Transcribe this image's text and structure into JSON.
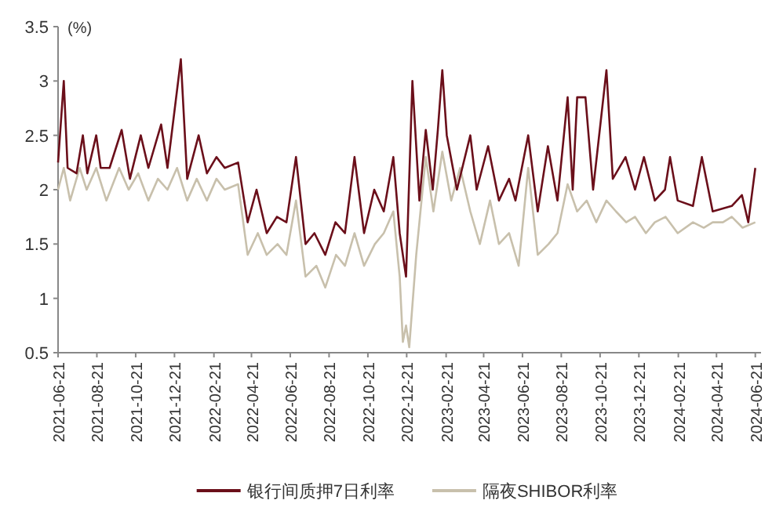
{
  "chart_data": {
    "type": "line",
    "ylabel": "(%)",
    "xlim": [
      "2021-06-21",
      "2024-06-30"
    ],
    "ylim": [
      0.5,
      3.5
    ],
    "yticks": [
      0.5,
      1,
      1.5,
      2,
      2.5,
      3,
      3.5
    ],
    "xticks": [
      "2021-06-21",
      "2021-08-21",
      "2021-10-21",
      "2021-12-21",
      "2022-02-21",
      "2022-04-21",
      "2022-06-21",
      "2022-08-21",
      "2022-10-21",
      "2022-12-21",
      "2023-02-21",
      "2023-04-21",
      "2023-06-21",
      "2023-08-21",
      "2023-10-21",
      "2023-12-21",
      "2024-02-21",
      "2024-04-21",
      "2024-06-21"
    ],
    "legend": "bottom",
    "grid": false,
    "marker": "none",
    "line_style": "solid",
    "series": [
      {
        "name": "银行间质押7日利率",
        "color": "#6b0f1a",
        "x": [
          "2021-06-21",
          "2021-06-30",
          "2021-07-06",
          "2021-07-20",
          "2021-07-30",
          "2021-08-06",
          "2021-08-20",
          "2021-08-27",
          "2021-09-10",
          "2021-09-29",
          "2021-10-12",
          "2021-10-29",
          "2021-11-10",
          "2021-11-30",
          "2021-12-10",
          "2021-12-31",
          "2022-01-10",
          "2022-01-28",
          "2022-02-10",
          "2022-02-25",
          "2022-03-10",
          "2022-03-31",
          "2022-04-15",
          "2022-04-29",
          "2022-05-15",
          "2022-05-31",
          "2022-06-15",
          "2022-06-30",
          "2022-07-15",
          "2022-07-29",
          "2022-08-15",
          "2022-08-31",
          "2022-09-15",
          "2022-09-30",
          "2022-10-15",
          "2022-10-31",
          "2022-11-15",
          "2022-11-30",
          "2022-12-10",
          "2022-12-20",
          "2022-12-30",
          "2023-01-10",
          "2023-01-20",
          "2023-01-31",
          "2023-02-08",
          "2023-02-15",
          "2023-02-22",
          "2023-03-10",
          "2023-03-31",
          "2023-04-10",
          "2023-04-28",
          "2023-05-15",
          "2023-05-31",
          "2023-06-10",
          "2023-06-30",
          "2023-07-15",
          "2023-07-31",
          "2023-08-15",
          "2023-08-31",
          "2023-09-08",
          "2023-09-15",
          "2023-09-28",
          "2023-10-10",
          "2023-10-31",
          "2023-11-10",
          "2023-11-30",
          "2023-12-15",
          "2023-12-29",
          "2024-01-15",
          "2024-01-31",
          "2024-02-08",
          "2024-02-20",
          "2024-03-15",
          "2024-03-29",
          "2024-04-15",
          "2024-05-15",
          "2024-05-31",
          "2024-06-10",
          "2024-06-21"
        ],
        "values": [
          2.25,
          3.0,
          2.2,
          2.15,
          2.5,
          2.15,
          2.5,
          2.2,
          2.2,
          2.55,
          2.1,
          2.5,
          2.2,
          2.6,
          2.2,
          3.2,
          2.1,
          2.5,
          2.15,
          2.3,
          2.2,
          2.25,
          1.7,
          2.0,
          1.6,
          1.75,
          1.7,
          2.3,
          1.5,
          1.6,
          1.4,
          1.7,
          1.6,
          2.3,
          1.6,
          2.0,
          1.8,
          2.3,
          1.6,
          1.2,
          3.0,
          1.9,
          2.55,
          2.0,
          2.55,
          3.1,
          2.5,
          2.0,
          2.5,
          2.0,
          2.4,
          1.9,
          2.1,
          1.9,
          2.5,
          1.8,
          2.4,
          1.9,
          2.85,
          2.0,
          2.85,
          2.85,
          2.0,
          3.1,
          2.1,
          2.3,
          2.0,
          2.3,
          1.9,
          2.0,
          2.3,
          1.9,
          1.85,
          2.3,
          1.8,
          1.85,
          1.95,
          1.7,
          2.2
        ]
      },
      {
        "name": "隔夜SHIBOR利率",
        "color": "#c8c0ac",
        "x": [
          "2021-06-21",
          "2021-06-30",
          "2021-07-10",
          "2021-07-25",
          "2021-08-05",
          "2021-08-20",
          "2021-09-05",
          "2021-09-25",
          "2021-10-10",
          "2021-10-25",
          "2021-11-10",
          "2021-11-25",
          "2021-12-10",
          "2021-12-25",
          "2022-01-10",
          "2022-01-25",
          "2022-02-10",
          "2022-02-25",
          "2022-03-10",
          "2022-03-31",
          "2022-04-15",
          "2022-05-01",
          "2022-05-15",
          "2022-06-01",
          "2022-06-15",
          "2022-06-30",
          "2022-07-15",
          "2022-08-01",
          "2022-08-15",
          "2022-09-01",
          "2022-09-15",
          "2022-09-30",
          "2022-10-15",
          "2022-11-01",
          "2022-11-15",
          "2022-11-30",
          "2022-12-10",
          "2022-12-15",
          "2022-12-20",
          "2022-12-25",
          "2023-01-05",
          "2023-01-20",
          "2023-02-01",
          "2023-02-15",
          "2023-03-01",
          "2023-03-15",
          "2023-03-31",
          "2023-04-15",
          "2023-05-01",
          "2023-05-15",
          "2023-05-31",
          "2023-06-15",
          "2023-06-30",
          "2023-07-15",
          "2023-08-01",
          "2023-08-15",
          "2023-08-31",
          "2023-09-15",
          "2023-09-30",
          "2023-10-15",
          "2023-10-31",
          "2023-11-15",
          "2023-12-01",
          "2023-12-15",
          "2024-01-01",
          "2024-01-15",
          "2024-02-01",
          "2024-02-20",
          "2024-03-15",
          "2024-04-01",
          "2024-04-15",
          "2024-05-01",
          "2024-05-15",
          "2024-06-01",
          "2024-06-21"
        ],
        "values": [
          2.0,
          2.2,
          1.9,
          2.2,
          2.0,
          2.2,
          1.9,
          2.2,
          2.0,
          2.15,
          1.9,
          2.1,
          2.0,
          2.2,
          1.9,
          2.1,
          1.9,
          2.1,
          2.0,
          2.05,
          1.4,
          1.6,
          1.4,
          1.5,
          1.4,
          1.9,
          1.2,
          1.3,
          1.1,
          1.4,
          1.3,
          1.6,
          1.3,
          1.5,
          1.6,
          1.8,
          1.2,
          0.6,
          0.75,
          0.55,
          1.4,
          2.3,
          1.8,
          2.35,
          1.9,
          2.2,
          1.8,
          1.5,
          1.9,
          1.5,
          1.6,
          1.3,
          2.2,
          1.4,
          1.5,
          1.6,
          2.05,
          1.8,
          1.9,
          1.7,
          1.9,
          1.8,
          1.7,
          1.75,
          1.6,
          1.7,
          1.75,
          1.6,
          1.7,
          1.65,
          1.7,
          1.7,
          1.75,
          1.65,
          1.7
        ]
      }
    ]
  }
}
